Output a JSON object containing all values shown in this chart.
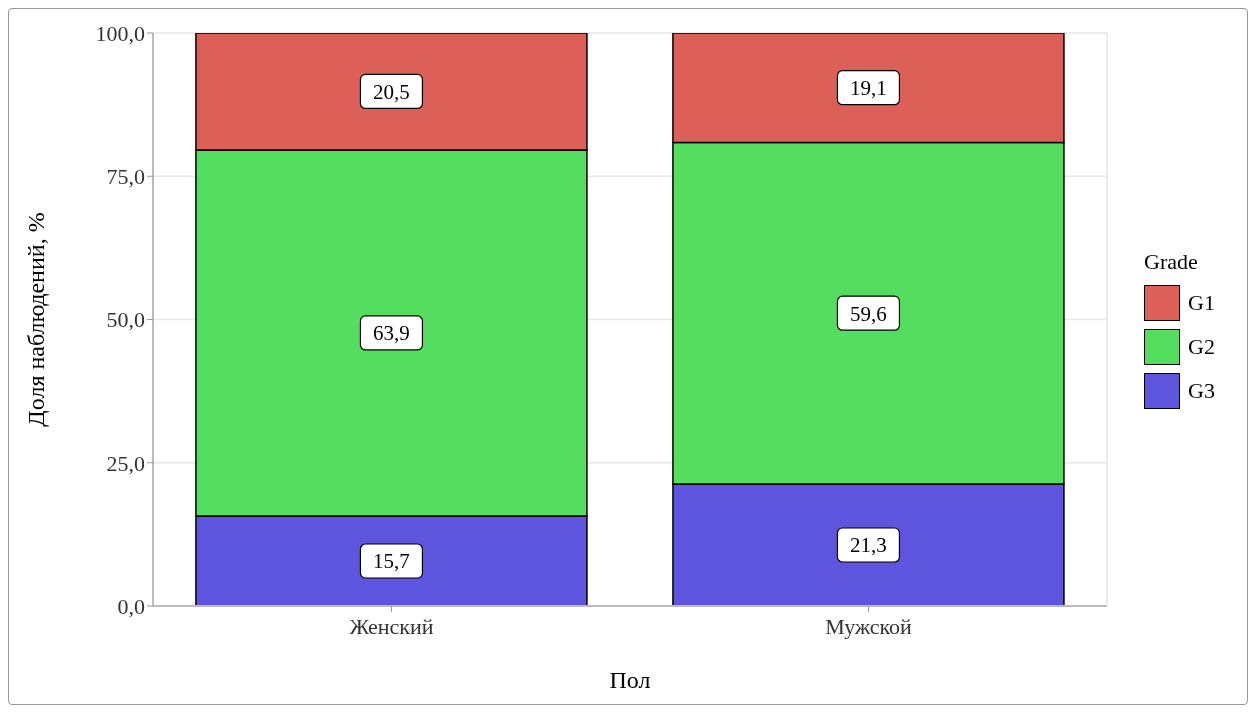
{
  "chart_data": {
    "type": "bar",
    "stacked": true,
    "xlabel": "Пол",
    "ylabel": "Доля наблюдений, %",
    "legend_title": "Grade",
    "legend": "right",
    "grid": true,
    "categories": [
      "Женский",
      "Мужской"
    ],
    "series": [
      {
        "name": "G3",
        "color": "#5d55dd",
        "values": [
          15.7,
          21.3
        ],
        "value_labels": [
          "15,7",
          "21,3"
        ]
      },
      {
        "name": "G2",
        "color": "#55dd5f",
        "values": [
          63.9,
          59.6
        ],
        "value_labels": [
          "63,9",
          "59,6"
        ]
      },
      {
        "name": "G1",
        "color": "#dc6058",
        "values": [
          20.5,
          19.1
        ],
        "value_labels": [
          "20,5",
          "19,1"
        ]
      }
    ],
    "ylim": [
      0,
      100
    ],
    "yticks": [
      {
        "value": 0,
        "label": "0,0"
      },
      {
        "value": 25,
        "label": "25,0"
      },
      {
        "value": 50,
        "label": "50,0"
      },
      {
        "value": 75,
        "label": "75,0"
      },
      {
        "value": 100,
        "label": "100,0"
      }
    ]
  }
}
